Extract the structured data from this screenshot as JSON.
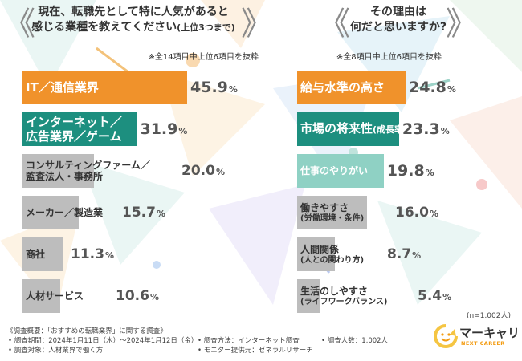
{
  "chart_data": [
    {
      "type": "bar",
      "title": "現在、転職先として特に人気があると感じる業種を教えてください",
      "title_sub": "(上位3つまで)",
      "note": "※全14項目中上位6項目を抜粋",
      "orientation": "horizontal",
      "unit": "%",
      "bars": [
        {
          "label_line1": "IT／通信業界",
          "label_line2": "",
          "value": 45.9,
          "value_text": "45.9",
          "color": "#f0922b"
        },
        {
          "label_line1": "インターネット／",
          "label_line2": "広告業界／ゲーム",
          "value": 31.9,
          "value_text": "31.9",
          "color": "#1d8f7f"
        },
        {
          "label_line1": "コンサルティングファーム／",
          "label_line2": "監査法人・事務所",
          "value": 20.0,
          "value_text": "20.0",
          "color": "#bdbdbd"
        },
        {
          "label_line1": "メーカー／製造業",
          "label_line2": "",
          "value": 15.7,
          "value_text": "15.7",
          "color": "#bdbdbd"
        },
        {
          "label_line1": "商社",
          "label_line2": "",
          "value": 11.3,
          "value_text": "11.3",
          "color": "#bdbdbd"
        },
        {
          "label_line1": "人材サービス",
          "label_line2": "",
          "value": 10.6,
          "value_text": "10.6",
          "color": "#bdbdbd"
        }
      ]
    },
    {
      "type": "bar",
      "title": "その理由は何だと思いますか?",
      "note": "※全8項目中上位6項目を抜粋",
      "orientation": "horizontal",
      "unit": "%",
      "bars": [
        {
          "label_line1": "給与水準の高さ",
          "label_line2": "",
          "value": 24.8,
          "value_text": "24.8",
          "color": "#f0922b"
        },
        {
          "label_line1": "市場の将来性",
          "label_inline_sub": "(成長率)",
          "label_line2": "",
          "value": 23.3,
          "value_text": "23.3",
          "color": "#1d8f7f"
        },
        {
          "label_line1": "仕事のやりがい",
          "label_line2": "",
          "value": 19.8,
          "value_text": "19.8",
          "color": "#8fd1c4"
        },
        {
          "label_line1": "働きやすさ",
          "label_line2": "(労働環境・条件)",
          "value": 16.0,
          "value_text": "16.0",
          "color": "#bdbdbd"
        },
        {
          "label_line1": "人間関係",
          "label_line2": "(人との関わり方)",
          "value": 8.7,
          "value_text": "8.7",
          "color": "#bdbdbd"
        },
        {
          "label_line1": "生活のしやすさ",
          "label_line2": "(ライフワークバランス)",
          "value": 5.4,
          "value_text": "5.4",
          "color": "#bdbdbd"
        }
      ]
    }
  ],
  "titles": {
    "left_line1": "現在、転職先として特に人気があると",
    "left_line2": "感じる業種を教えてください",
    "left_sub": "(上位3つまで)",
    "right_line1": "その理由は",
    "right_line2": "何だと思いますか?"
  },
  "sample_note": "(n=1,002人)",
  "footer": {
    "outline": "《調査概要：「おすすめの転職業界」に関する調査》",
    "period": "• 調査期間：2024年1月11日（木）〜2024年1月12日（金）",
    "target": "• 調査対象：人材業界で働く方",
    "method": "• 調査方法：インターネット調査",
    "provider": "• モニター提供元：ゼネラルリサーチ",
    "count": "• 調査人数：1,002人"
  },
  "logo": {
    "name": "マーキャリ",
    "tagline": "NEXT CAREER",
    "icon": "speech-bubble-smile-logo"
  },
  "colors": {
    "orange": "#f0922b",
    "teal": "#1d8f7f",
    "light_teal": "#8fd1c4",
    "gray": "#bdbdbd",
    "accent_yellow": "#f5c542"
  }
}
